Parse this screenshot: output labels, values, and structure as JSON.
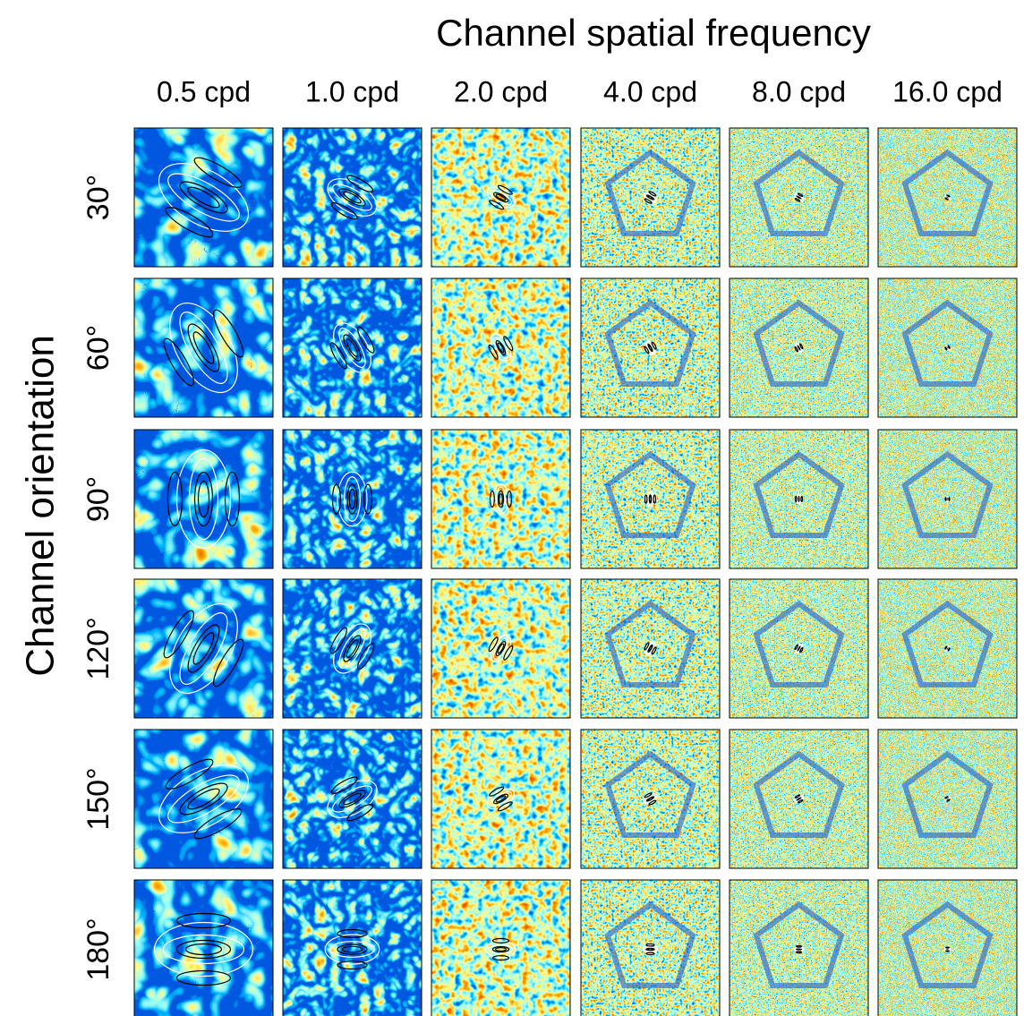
{
  "title": "Channel spatial frequency",
  "y_label": "Channel orientation",
  "columns": [
    "0.5 cpd",
    "1.0 cpd",
    "2.0 cpd",
    "4.0 cpd",
    "8.0 cpd",
    "16.0 cpd"
  ],
  "rows": [
    "30°",
    "60°",
    "90°",
    "120°",
    "150°",
    "180°"
  ]
}
